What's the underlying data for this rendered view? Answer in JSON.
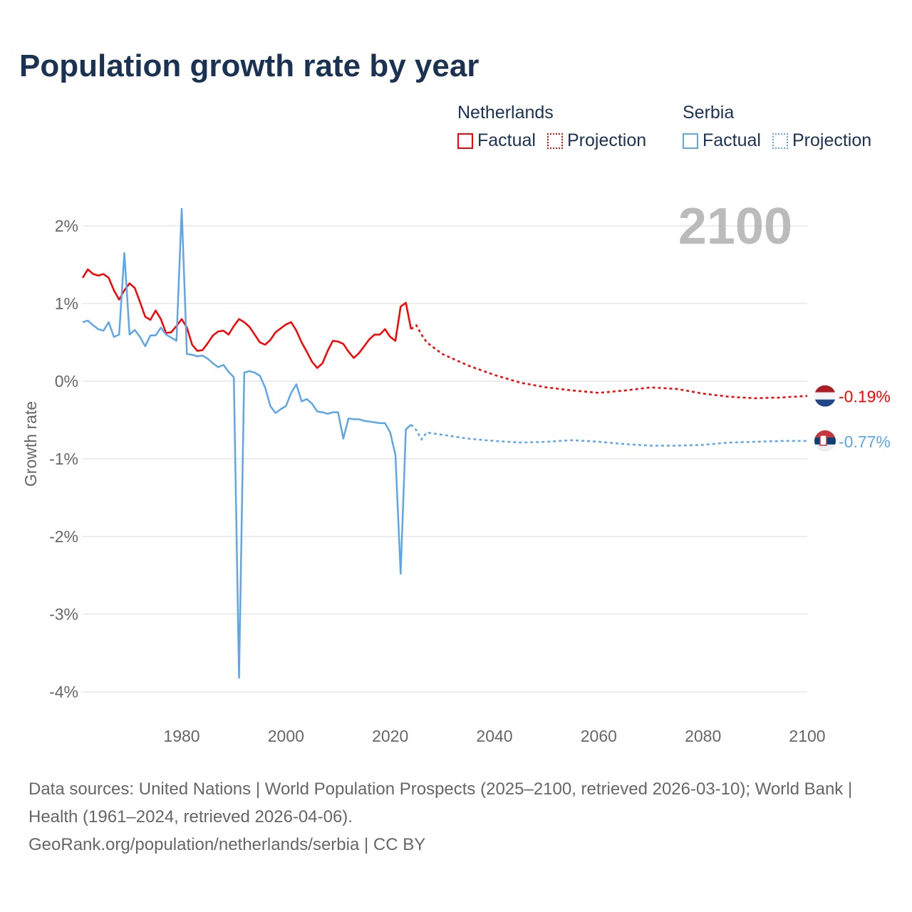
{
  "title": "Population growth rate by year",
  "legend": {
    "groups": [
      {
        "name": "Netherlands",
        "color": "#ff0000",
        "factual": "Factual",
        "projection": "Projection"
      },
      {
        "name": "Serbia",
        "color": "#5ea6ea",
        "factual": "Factual",
        "projection": "Projection"
      }
    ]
  },
  "chart_data": {
    "type": "line",
    "title": "Population growth rate by year",
    "xlabel": "",
    "ylabel": "Growth rate",
    "year_label": "2100",
    "xlim": [
      1961,
      2100
    ],
    "ylim": [
      -4.3,
      2.4
    ],
    "xticks": [
      1980,
      2000,
      2020,
      2040,
      2060,
      2080,
      2100
    ],
    "yticks": [
      {
        "v": 2,
        "label": "2%"
      },
      {
        "v": 1,
        "label": "1%"
      },
      {
        "v": 0,
        "label": "0%"
      },
      {
        "v": -1,
        "label": "-1%"
      },
      {
        "v": -2,
        "label": "-2%"
      },
      {
        "v": -3,
        "label": "-3%"
      },
      {
        "v": -4,
        "label": "-4%"
      }
    ],
    "grid": true,
    "series": [
      {
        "name": "Netherlands",
        "color": "#ff0000",
        "end_label": "-0.19%",
        "factual": {
          "start": 1961,
          "values": [
            1.33,
            1.44,
            1.38,
            1.36,
            1.38,
            1.33,
            1.17,
            1.05,
            1.17,
            1.26,
            1.2,
            1.02,
            0.83,
            0.79,
            0.91,
            0.8,
            0.62,
            0.63,
            0.71,
            0.8,
            0.69,
            0.47,
            0.39,
            0.4,
            0.49,
            0.59,
            0.64,
            0.65,
            0.6,
            0.71,
            0.8,
            0.76,
            0.7,
            0.6,
            0.5,
            0.47,
            0.53,
            0.63,
            0.68,
            0.73,
            0.76,
            0.65,
            0.5,
            0.38,
            0.25,
            0.17,
            0.23,
            0.39,
            0.52,
            0.51,
            0.48,
            0.38,
            0.3,
            0.36,
            0.45,
            0.54,
            0.6,
            0.6,
            0.67,
            0.57,
            0.52,
            0.96,
            1.01,
            0.67
          ]
        },
        "projection": {
          "x": [
            2024,
            2025,
            2026,
            2027,
            2030,
            2035,
            2040,
            2045,
            2050,
            2055,
            2060,
            2065,
            2070,
            2075,
            2080,
            2085,
            2090,
            2095,
            2100
          ],
          "values": [
            0.67,
            0.72,
            0.6,
            0.5,
            0.35,
            0.2,
            0.08,
            -0.02,
            -0.08,
            -0.12,
            -0.15,
            -0.12,
            -0.08,
            -0.1,
            -0.16,
            -0.2,
            -0.22,
            -0.21,
            -0.19
          ]
        }
      },
      {
        "name": "Serbia",
        "color": "#5ea6ea",
        "end_label": "-0.77%",
        "factual": {
          "start": 1961,
          "values": [
            0.76,
            0.78,
            0.72,
            0.67,
            0.65,
            0.76,
            0.57,
            0.6,
            1.65,
            0.6,
            0.66,
            0.57,
            0.45,
            0.59,
            0.59,
            0.69,
            0.6,
            0.56,
            0.52,
            2.22,
            0.35,
            0.34,
            0.32,
            0.33,
            0.29,
            0.23,
            0.18,
            0.21,
            0.12,
            0.05,
            -3.82,
            0.11,
            0.13,
            0.11,
            0.07,
            -0.08,
            -0.32,
            -0.41,
            -0.36,
            -0.32,
            -0.15,
            -0.04,
            -0.26,
            -0.23,
            -0.29,
            -0.39,
            -0.4,
            -0.42,
            -0.4,
            -0.4,
            -0.74,
            -0.48,
            -0.49,
            -0.49,
            -0.51,
            -0.52,
            -0.53,
            -0.54,
            -0.54,
            -0.66,
            -0.95,
            -2.48,
            -0.62,
            -0.56
          ]
        },
        "projection": {
          "x": [
            2024,
            2025,
            2026,
            2027,
            2030,
            2035,
            2040,
            2045,
            2050,
            2055,
            2060,
            2065,
            2070,
            2075,
            2080,
            2085,
            2090,
            2095,
            2100
          ],
          "values": [
            -0.56,
            -0.63,
            -0.75,
            -0.66,
            -0.69,
            -0.74,
            -0.77,
            -0.79,
            -0.78,
            -0.76,
            -0.78,
            -0.81,
            -0.83,
            -0.83,
            -0.82,
            -0.79,
            -0.78,
            -0.77,
            -0.77
          ]
        }
      }
    ]
  },
  "footer": {
    "sources": "Data sources: United Nations | World Population Prospects (2025–2100, retrieved 2026-03-10); World Bank | Health (1961–2024, retrieved 2026-04-06).",
    "credit": "GeoRank.org/population/netherlands/serbia | CC BY"
  }
}
